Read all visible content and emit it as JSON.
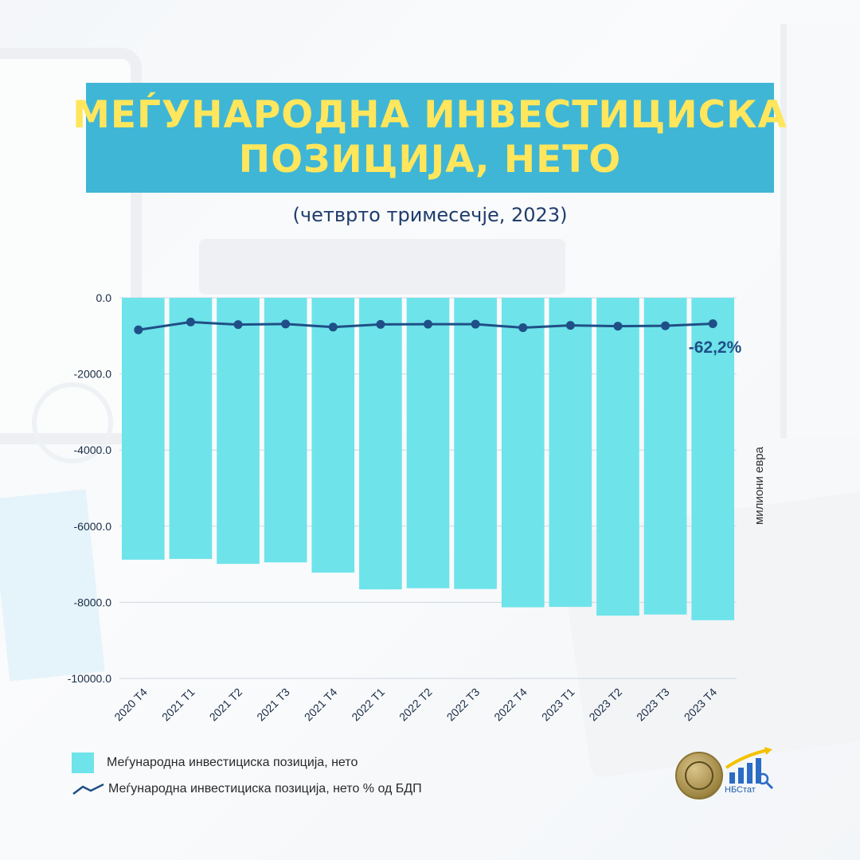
{
  "title": {
    "line1": "МЕЃУНАРОДНА ИНВЕСТИЦИСКА",
    "line2": "ПОЗИЦИЈА, НЕТО"
  },
  "subtitle": "(четврто тримесечје, 2023)",
  "colors": {
    "title_bg": "#3fb6d6",
    "title_text": "#ffe65c",
    "bar": "#6ee3ea",
    "line": "#1f4f86"
  },
  "chart_data": {
    "type": "bar",
    "categories": [
      "2020 Т4",
      "2021 Т1",
      "2021 Т2",
      "2021 Т3",
      "2021 Т4",
      "2022 Т1",
      "2022 Т2",
      "2022 Т3",
      "2022 Т4",
      "2023 Т1",
      "2023 Т2",
      "2023 Т3",
      "2023 Т4"
    ],
    "series": [
      {
        "name": "Меѓународна инвестициска позиција, нето",
        "type": "bar",
        "axis": "left",
        "values": [
          -6880,
          -6860,
          -6990,
          -6950,
          -7220,
          -7660,
          -7630,
          -7650,
          -8130,
          -8120,
          -8350,
          -8320,
          -8470
        ]
      },
      {
        "name": "Меѓународна инвестициска позиција, нето % од БДП",
        "type": "line",
        "axis": "secondary",
        "values": [
          -78.0,
          -58.0,
          -64.5,
          -63.0,
          -71.0,
          -64.0,
          -63.5,
          -63.5,
          -72.5,
          -66.5,
          -68.5,
          -67.5,
          -62.2
        ]
      }
    ],
    "ylabel": "милиони евра",
    "ylim": [
      -10000,
      0
    ],
    "yticks": [
      "0.0",
      "-2000.0",
      "-4000.0",
      "-6000.0",
      "-8000.0",
      "-10000.0"
    ],
    "ytick_values": [
      0,
      -2000,
      -4000,
      -6000,
      -8000,
      -10000
    ],
    "data_label": "-62,2%",
    "grid": true,
    "legend_position": "bottom-left"
  },
  "logos": {
    "nbstat_label": "НБСтат"
  }
}
